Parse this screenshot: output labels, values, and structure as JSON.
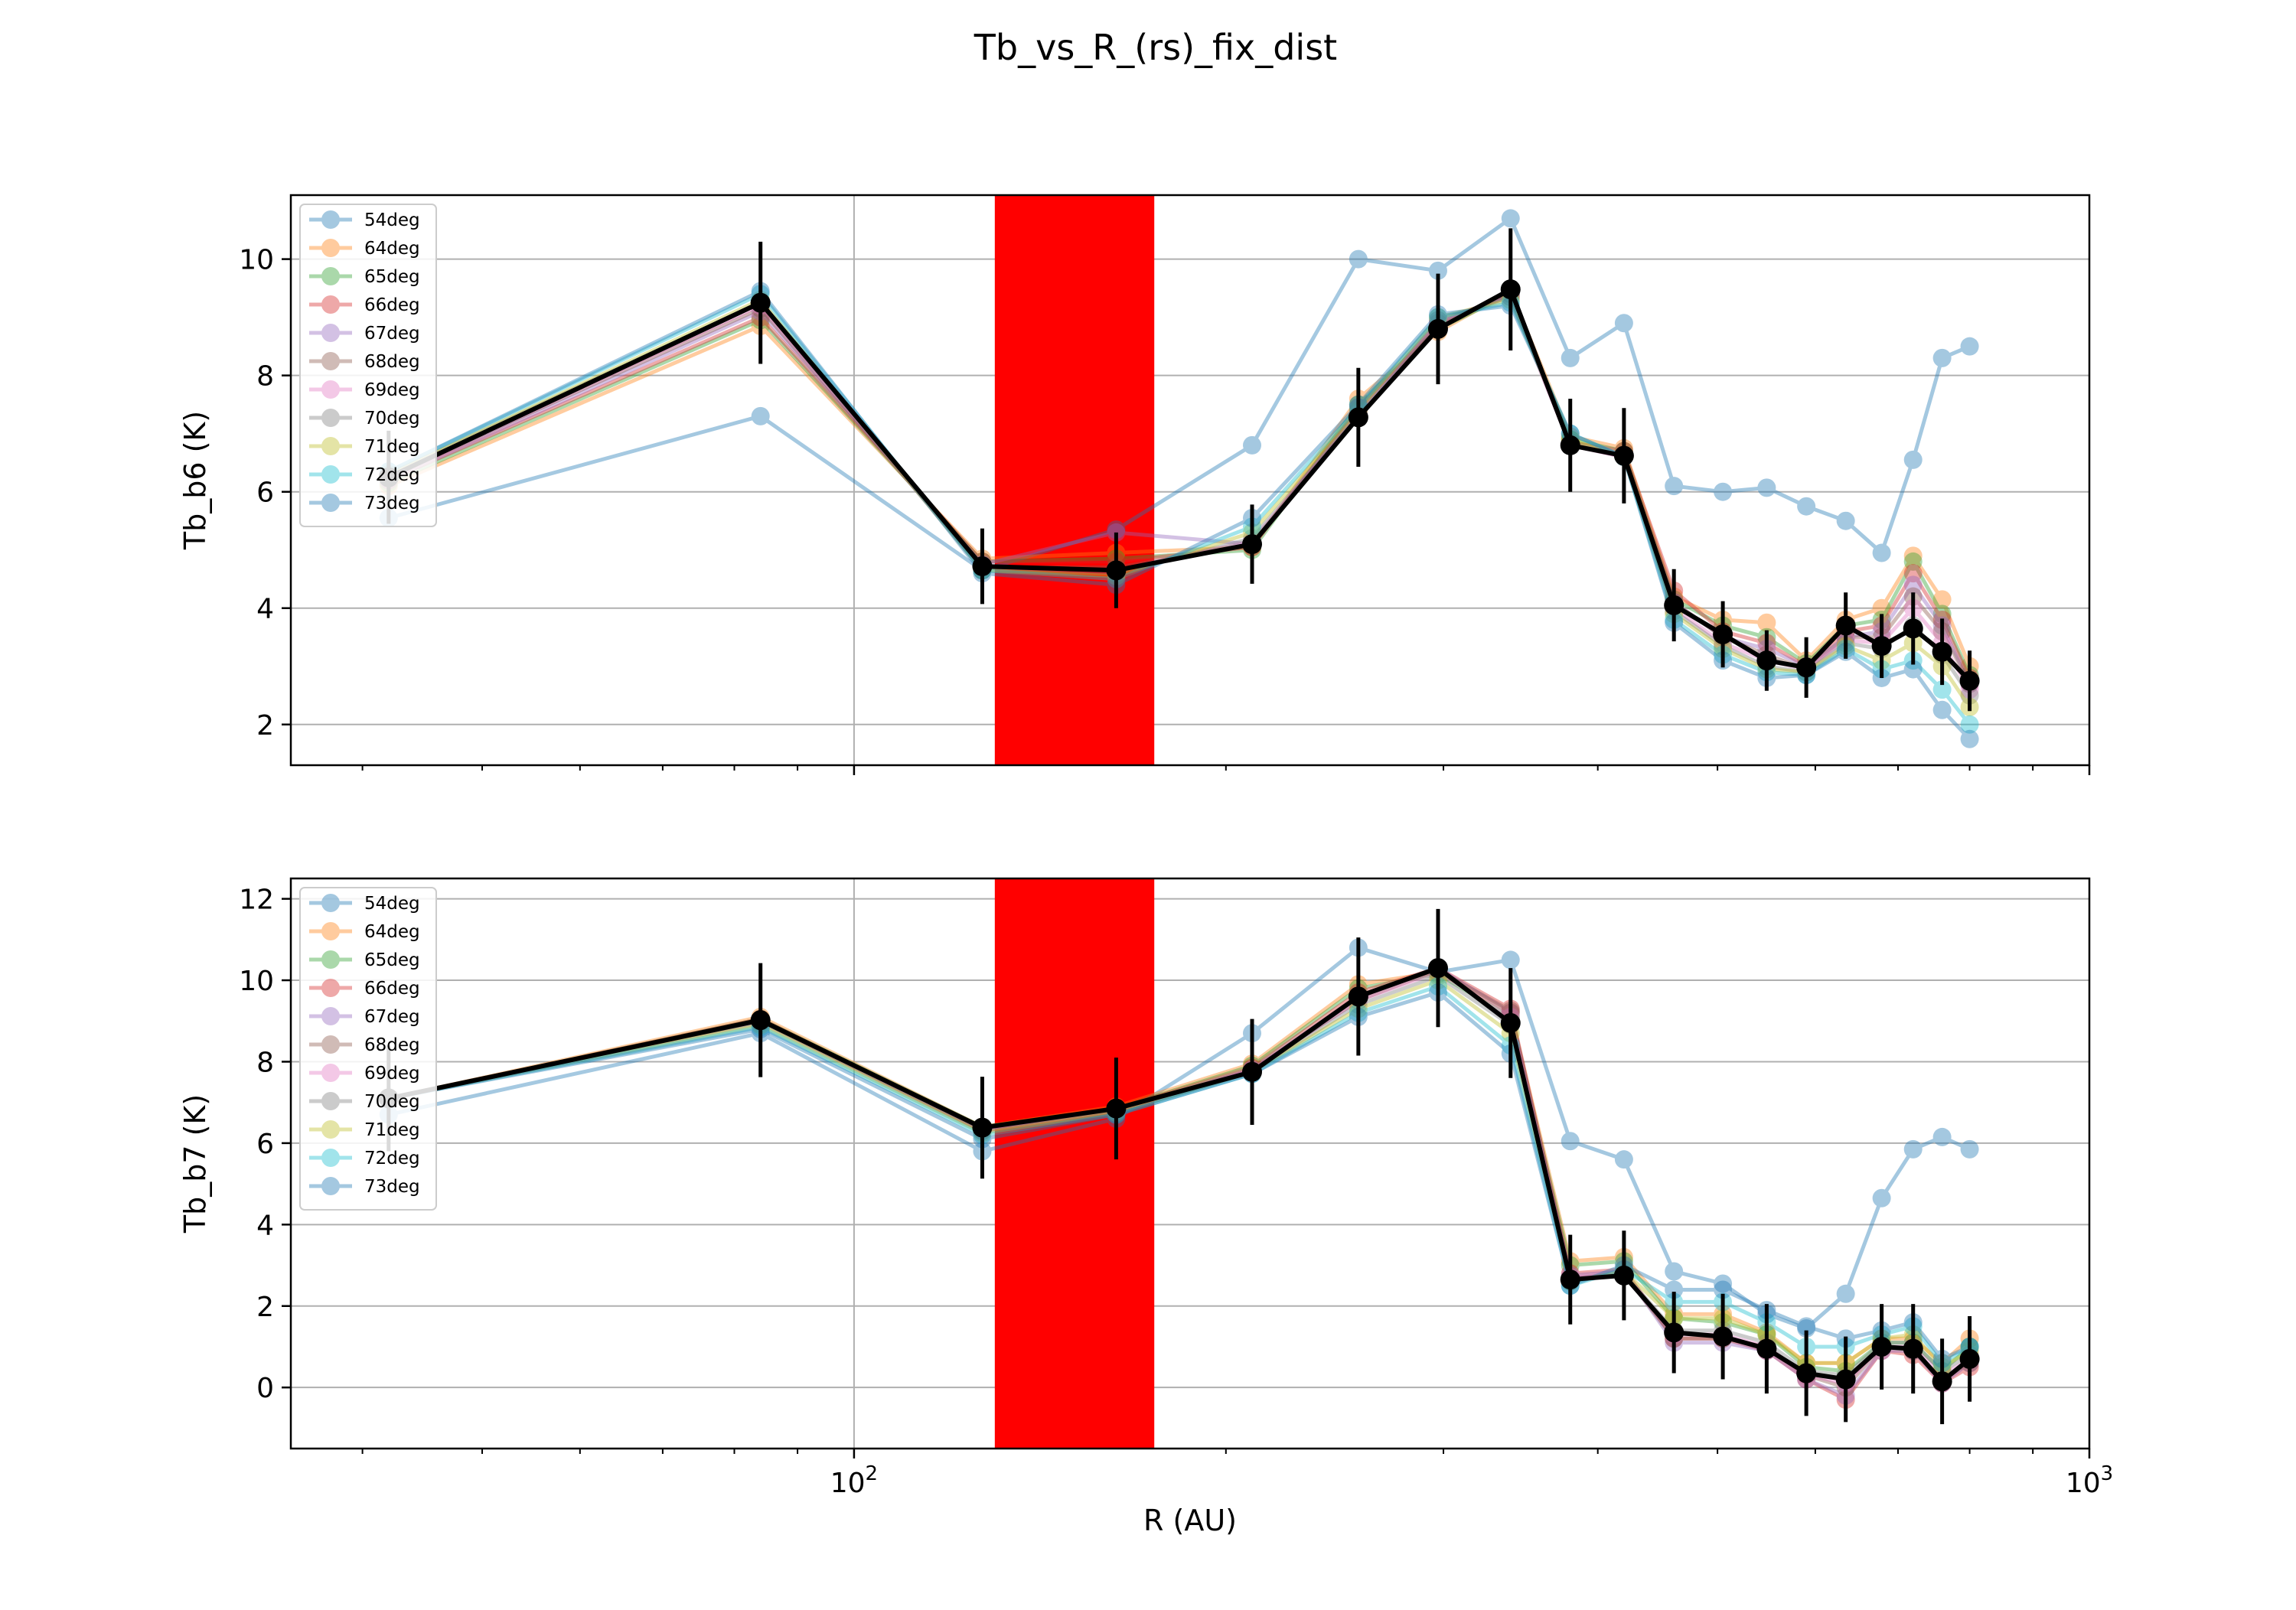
{
  "figure": {
    "title": "Tb_vs_R_(rs)_fix_dist",
    "xlabel": "R (AU)"
  },
  "chart_data": [
    {
      "type": "line",
      "name": "top",
      "ylabel": "Tb_b6 (K)",
      "xscale": "log",
      "xlim": [
        35,
        1000
      ],
      "ylim": [
        1.3,
        11.1
      ],
      "yticks": [
        2,
        4,
        6,
        8,
        10
      ],
      "xticks": [
        {
          "value": 100,
          "base": "10",
          "exp": "2"
        },
        {
          "value": 1000,
          "base": "10",
          "exp": "3"
        }
      ],
      "show_xtick_labels": false,
      "grid": true,
      "legend_loc": "upper-left",
      "shaded_span": {
        "x0": 130,
        "x1": 175,
        "color": "#ff0000"
      },
      "x": [
        42,
        84,
        127,
        163,
        210,
        256,
        297,
        340,
        380,
        420,
        461,
        505,
        548,
        590,
        635,
        679,
        720,
        760,
        800
      ],
      "series": [
        {
          "name": "54deg",
          "color": "#1f77b4",
          "values": [
            5.55,
            7.3,
            4.65,
            5.35,
            6.8,
            10.0,
            9.8,
            10.7,
            8.3,
            8.9,
            6.1,
            6.0,
            6.07,
            5.75,
            5.5,
            4.95,
            6.55,
            8.3,
            8.5
          ]
        },
        {
          "name": "64deg",
          "color": "#ff7f0e",
          "values": [
            6.1,
            8.85,
            4.85,
            4.95,
            5.05,
            7.6,
            8.75,
            9.45,
            6.95,
            6.75,
            4.2,
            3.8,
            3.75,
            3.1,
            3.8,
            4.0,
            4.9,
            4.15,
            3.0
          ]
        },
        {
          "name": "65deg",
          "color": "#2ca02c",
          "values": [
            6.15,
            8.95,
            4.8,
            4.85,
            5.0,
            7.5,
            8.8,
            9.4,
            6.9,
            6.7,
            4.15,
            3.7,
            3.5,
            3.05,
            3.7,
            3.8,
            4.8,
            3.9,
            2.85
          ]
        },
        {
          "name": "66deg",
          "color": "#d62728",
          "values": [
            6.2,
            9.0,
            4.8,
            4.8,
            5.05,
            7.45,
            8.85,
            9.45,
            6.85,
            6.7,
            4.3,
            3.6,
            3.4,
            3.0,
            3.6,
            3.7,
            4.6,
            3.8,
            2.8
          ]
        },
        {
          "name": "67deg",
          "color": "#9467bd",
          "values": [
            6.2,
            9.1,
            4.75,
            5.3,
            5.1,
            7.4,
            8.9,
            9.4,
            6.8,
            6.6,
            4.1,
            3.5,
            3.3,
            3.0,
            3.5,
            3.6,
            4.4,
            3.7,
            2.7
          ]
        },
        {
          "name": "68deg",
          "color": "#8c564b",
          "values": [
            6.25,
            9.15,
            4.7,
            4.7,
            5.1,
            7.4,
            8.9,
            9.4,
            6.8,
            6.6,
            4.1,
            3.5,
            3.2,
            2.95,
            3.5,
            3.5,
            4.2,
            3.6,
            2.7
          ]
        },
        {
          "name": "69deg",
          "color": "#e377c2",
          "values": [
            6.25,
            9.2,
            4.7,
            4.65,
            5.15,
            7.35,
            8.95,
            9.35,
            6.8,
            6.6,
            4.0,
            3.4,
            3.1,
            2.95,
            3.45,
            3.4,
            4.0,
            3.4,
            2.6
          ]
        },
        {
          "name": "70deg",
          "color": "#7f7f7f",
          "values": [
            6.3,
            9.25,
            4.65,
            4.6,
            5.2,
            7.35,
            8.95,
            9.35,
            6.85,
            6.6,
            3.95,
            3.35,
            3.0,
            2.9,
            3.4,
            3.3,
            3.7,
            3.2,
            2.5
          ]
        },
        {
          "name": "71deg",
          "color": "#bcbd22",
          "values": [
            6.3,
            9.3,
            4.65,
            4.55,
            5.3,
            7.4,
            9.0,
            9.3,
            6.9,
            6.6,
            3.9,
            3.3,
            2.95,
            2.9,
            3.35,
            3.1,
            3.4,
            3.0,
            2.3
          ]
        },
        {
          "name": "72deg",
          "color": "#17becf",
          "values": [
            6.35,
            9.4,
            4.65,
            4.5,
            5.4,
            7.45,
            9.0,
            9.25,
            7.0,
            6.6,
            3.8,
            3.2,
            2.9,
            2.85,
            3.3,
            2.95,
            3.1,
            2.6,
            2.0
          ]
        },
        {
          "name": "73deg",
          "color": "#1f77b4",
          "values": [
            6.35,
            9.45,
            4.6,
            4.4,
            5.55,
            7.5,
            9.05,
            9.2,
            7.0,
            6.6,
            3.75,
            3.1,
            2.8,
            2.85,
            3.25,
            2.8,
            2.95,
            2.25,
            1.75
          ]
        }
      ],
      "mean": {
        "values": [
          6.25,
          9.25,
          4.72,
          4.65,
          5.1,
          7.28,
          8.8,
          9.48,
          6.8,
          6.62,
          4.05,
          3.55,
          3.1,
          2.98,
          3.7,
          3.35,
          3.65,
          3.25,
          2.75
        ],
        "errors": [
          0.8,
          1.05,
          0.65,
          0.65,
          0.68,
          0.85,
          0.95,
          1.05,
          0.8,
          0.82,
          0.62,
          0.57,
          0.52,
          0.52,
          0.57,
          0.55,
          0.62,
          0.57,
          0.52
        ]
      }
    },
    {
      "type": "line",
      "name": "bottom",
      "ylabel": "Tb_b7 (K)",
      "xscale": "log",
      "xlim": [
        35,
        1000
      ],
      "ylim": [
        -1.5,
        12.5
      ],
      "yticks": [
        0,
        2,
        4,
        6,
        8,
        10,
        12
      ],
      "xticks": [
        {
          "value": 100,
          "base": "10",
          "exp": "2"
        },
        {
          "value": 1000,
          "base": "10",
          "exp": "3"
        }
      ],
      "show_xtick_labels": true,
      "grid": true,
      "legend_loc": "upper-left",
      "shaded_span": {
        "x0": 130,
        "x1": 175,
        "color": "#ff0000"
      },
      "x": [
        42,
        84,
        127,
        163,
        210,
        256,
        297,
        340,
        380,
        420,
        461,
        505,
        548,
        590,
        635,
        679,
        720,
        760,
        800
      ],
      "series": [
        {
          "name": "54deg",
          "color": "#1f77b4",
          "values": [
            6.7,
            8.7,
            5.8,
            6.6,
            8.7,
            10.8,
            10.2,
            10.5,
            6.05,
            5.6,
            2.85,
            2.55,
            1.8,
            1.45,
            2.3,
            4.65,
            5.85,
            6.15,
            5.85
          ]
        },
        {
          "name": "64deg",
          "color": "#ff7f0e",
          "values": [
            7.1,
            9.1,
            6.4,
            6.9,
            7.95,
            9.9,
            10.2,
            9.2,
            3.1,
            3.2,
            1.8,
            1.8,
            1.35,
            0.6,
            0.6,
            1.2,
            1.2,
            0.6,
            1.2
          ]
        },
        {
          "name": "65deg",
          "color": "#2ca02c",
          "values": [
            7.1,
            9.05,
            6.4,
            6.85,
            7.9,
            9.8,
            10.15,
            9.1,
            3.0,
            3.1,
            1.7,
            1.6,
            1.3,
            0.5,
            0.4,
            1.1,
            1.1,
            0.4,
            1.0
          ]
        },
        {
          "name": "66deg",
          "color": "#d62728",
          "values": [
            7.1,
            9.05,
            6.35,
            6.85,
            7.85,
            9.7,
            10.3,
            9.3,
            2.8,
            2.9,
            1.2,
            1.2,
            0.9,
            0.2,
            -0.3,
            0.9,
            0.8,
            0.1,
            0.5
          ]
        },
        {
          "name": "67deg",
          "color": "#9467bd",
          "values": [
            7.1,
            9.0,
            6.35,
            6.8,
            7.8,
            9.6,
            10.3,
            9.2,
            2.75,
            2.85,
            1.1,
            1.1,
            0.9,
            0.2,
            -0.2,
            0.9,
            0.9,
            0.1,
            0.6
          ]
        },
        {
          "name": "68deg",
          "color": "#8c564b",
          "values": [
            7.1,
            9.0,
            6.3,
            6.8,
            7.8,
            9.5,
            10.25,
            9.25,
            2.7,
            2.8,
            1.2,
            1.2,
            1.0,
            0.3,
            0.0,
            1.0,
            0.9,
            0.2,
            0.6
          ]
        },
        {
          "name": "69deg",
          "color": "#e377c2",
          "values": [
            7.1,
            9.0,
            6.3,
            6.8,
            7.8,
            9.5,
            10.2,
            9.1,
            2.7,
            2.8,
            1.3,
            1.3,
            1.0,
            0.3,
            0.1,
            1.0,
            1.0,
            0.3,
            0.7
          ]
        },
        {
          "name": "70deg",
          "color": "#7f7f7f",
          "values": [
            7.1,
            8.95,
            6.3,
            6.75,
            7.75,
            9.4,
            10.1,
            8.9,
            2.6,
            2.8,
            1.4,
            1.4,
            1.1,
            0.4,
            0.3,
            1.1,
            1.1,
            0.4,
            0.8
          ]
        },
        {
          "name": "71deg",
          "color": "#bcbd22",
          "values": [
            7.1,
            8.9,
            6.25,
            6.75,
            7.75,
            9.3,
            10.0,
            8.7,
            2.6,
            2.85,
            1.7,
            1.7,
            1.3,
            0.6,
            0.6,
            1.2,
            1.3,
            0.5,
            0.9
          ]
        },
        {
          "name": "72deg",
          "color": "#17becf",
          "values": [
            7.1,
            8.85,
            6.2,
            6.7,
            7.7,
            9.2,
            9.85,
            8.4,
            2.5,
            2.9,
            2.1,
            2.1,
            1.6,
            1.0,
            1.0,
            1.3,
            1.5,
            0.6,
            1.0
          ]
        },
        {
          "name": "73deg",
          "color": "#1f77b4",
          "values": [
            7.1,
            8.8,
            6.1,
            6.7,
            7.7,
            9.1,
            9.7,
            8.2,
            2.5,
            3.0,
            2.4,
            2.4,
            1.9,
            1.5,
            1.2,
            1.4,
            1.6,
            0.7,
            1.0
          ]
        }
      ],
      "mean": {
        "values": [
          7.1,
          9.02,
          6.38,
          6.85,
          7.75,
          9.6,
          10.3,
          8.95,
          2.65,
          2.75,
          1.35,
          1.25,
          0.95,
          0.35,
          0.2,
          1.0,
          0.95,
          0.15,
          0.7
        ],
        "errors": [
          1.3,
          1.4,
          1.25,
          1.25,
          1.3,
          1.45,
          1.45,
          1.35,
          1.1,
          1.1,
          1.0,
          1.05,
          1.1,
          1.05,
          1.05,
          1.05,
          1.1,
          1.05,
          1.05
        ]
      }
    }
  ]
}
